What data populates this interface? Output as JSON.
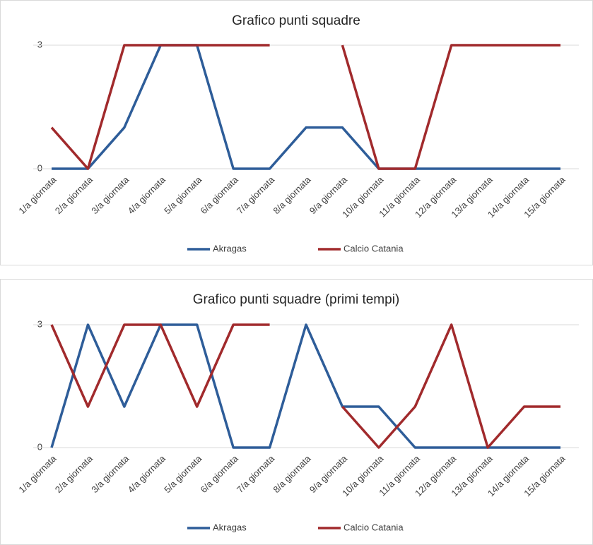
{
  "chart_data": [
    {
      "type": "line",
      "title": "Grafico punti squadre",
      "categories": [
        "1/a giornata",
        "2/a giornata",
        "3/a giornata",
        "4/a giornata",
        "5/a giornata",
        "6/a giornata",
        "7/a giornata",
        "8/a giornata",
        "9/a giornata",
        "10/a giornata",
        "11/a giornata",
        "12/a giornata",
        "13/a giornata",
        "14/a giornata",
        "15/a giornata"
      ],
      "series": [
        {
          "name": "Akragas",
          "color": "#2e5d99",
          "values": [
            0,
            0,
            1,
            3,
            3,
            0,
            0,
            1,
            1,
            0,
            0,
            0,
            0,
            0,
            0
          ]
        },
        {
          "name": "Calcio Catania",
          "color": "#a12a2c",
          "values": [
            1,
            0,
            3,
            3,
            3,
            3,
            3,
            null,
            3,
            0,
            0,
            3,
            3,
            3,
            3
          ]
        }
      ],
      "ylim": [
        0,
        3
      ],
      "yticks": [
        0,
        3
      ],
      "grid": true,
      "legend": "bottom"
    },
    {
      "type": "line",
      "title": "Grafico punti squadre (primi tempi)",
      "categories": [
        "1/a giornata",
        "2/a giornata",
        "3/a giornata",
        "4/a giornata",
        "5/a giornata",
        "6/a giornata",
        "7/a giornata",
        "8/a giornata",
        "9/a giornata",
        "10/a giornata",
        "11/a giornata",
        "12/a giornata",
        "13/a giornata",
        "14/a giornata",
        "15/a giornata"
      ],
      "series": [
        {
          "name": "Akragas",
          "color": "#2e5d99",
          "values": [
            0,
            3,
            1,
            3,
            3,
            0,
            0,
            3,
            1,
            1,
            0,
            0,
            0,
            0,
            0
          ]
        },
        {
          "name": "Calcio Catania",
          "color": "#a12a2c",
          "values": [
            3,
            1,
            3,
            3,
            1,
            3,
            3,
            null,
            1,
            0,
            1,
            3,
            0,
            1,
            1
          ]
        }
      ],
      "ylim": [
        0,
        3
      ],
      "yticks": [
        0,
        3
      ],
      "grid": true,
      "legend": "bottom"
    }
  ]
}
